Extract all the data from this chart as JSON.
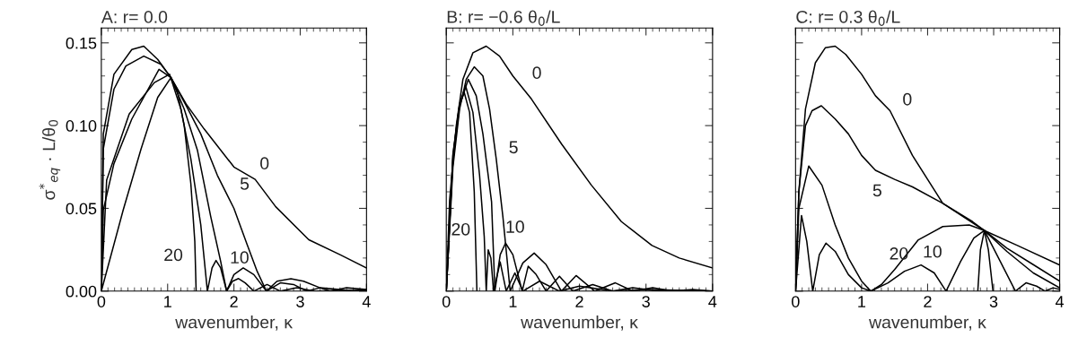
{
  "chart_data": [
    {
      "type": "line",
      "title": "A: r= 0.0",
      "xlabel": "wavenumber, κ",
      "ylabel": "σ$^{*}$$_{eq}$ · L/θ$_{0}$",
      "xlim": [
        0,
        4
      ],
      "ylim": [
        0,
        0.159
      ],
      "xticks": [
        0,
        1,
        2,
        3,
        4
      ],
      "yticks": [
        {
          "value": 0,
          "label": "0.00"
        },
        {
          "value": 0.05,
          "label": "0.05"
        },
        {
          "value": 0.1,
          "label": "0.10"
        },
        {
          "value": 0.15,
          "label": "0.15"
        }
      ],
      "grid": false,
      "series": [
        {
          "color": "#000000",
          "x": [
            0,
            0.03,
            0.19,
            0.46,
            0.64,
            0.85,
            1.05,
            1.28,
            1.55,
            2.0,
            2.32,
            2.63,
            3.13,
            3.6,
            4.0
          ],
          "values": [
            0,
            0.095,
            0.131,
            0.146,
            0.148,
            0.14,
            0.129,
            0.113,
            0.098,
            0.075,
            0.0675,
            0.051,
            0.031,
            0.022,
            0.014
          ]
        },
        {
          "color": "#000000",
          "x": [
            0,
            0.03,
            0.19,
            0.37,
            0.64,
            0.9,
            1.05,
            1.28,
            1.5,
            1.75,
            2.0,
            2.2,
            2.35,
            2.49,
            2.65,
            2.86,
            3.05,
            3.3,
            3.45,
            3.7,
            4.0
          ],
          "values": [
            0,
            0.086,
            0.122,
            0.136,
            0.142,
            0.137,
            0.129,
            0.112,
            0.095,
            0.07,
            0.05,
            0.028,
            0.012,
            0,
            0.006,
            0.0075,
            0.006,
            0.002,
            0,
            0.002,
            0.001
          ]
        },
        {
          "color": "#000000",
          "x": [
            0,
            0.03,
            0.19,
            0.46,
            0.87,
            1.05,
            1.25,
            1.45,
            1.65,
            1.8,
            1.89,
            2.0,
            2.14,
            2.3,
            2.49,
            2.7,
            2.9,
            3.1,
            3.3,
            3.6,
            3.8,
            4.0
          ],
          "values": [
            0,
            0.049,
            0.077,
            0.104,
            0.134,
            0.129,
            0.11,
            0.085,
            0.045,
            0.018,
            0,
            0.01,
            0.014,
            0.01,
            0,
            0.005,
            0.004,
            0,
            0.002,
            0.001,
            0,
            0.001
          ]
        },
        {
          "color": "#000000",
          "x": [
            0,
            0.08,
            0.42,
            0.8,
            1.03,
            1.2,
            1.35,
            1.5,
            1.6,
            1.67,
            1.73,
            1.8,
            1.89,
            1.98,
            2.07,
            2.17,
            2.3,
            2.5,
            2.7,
            2.95,
            3.2,
            4.0
          ],
          "values": [
            0,
            0.067,
            0.107,
            0.126,
            0.131,
            0.11,
            0.08,
            0.04,
            0,
            0.014,
            0.0185,
            0.014,
            0,
            0.006,
            0.0076,
            0.005,
            0,
            0.004,
            0,
            0.002,
            0,
            0.0005
          ]
        },
        {
          "color": "#000000",
          "x": [
            0,
            0.33,
            0.6,
            0.85,
            1.05,
            1.15,
            1.25,
            1.35,
            1.41,
            1.43
          ],
          "values": [
            0,
            0.049,
            0.086,
            0.117,
            0.129,
            0.12,
            0.1,
            0.065,
            0.03,
            0
          ]
        }
      ],
      "annotations": [
        {
          "text": "0",
          "x": 2.2,
          "y": 0.0703
        },
        {
          "text": "5",
          "x": 1.9,
          "y": 0.058
        },
        {
          "text": "10",
          "x": 1.75,
          "y": 0.027
        },
        {
          "text": "20",
          "x": 1.42,
          "y": 0.015
        }
      ]
    },
    {
      "type": "line",
      "title": "B: r= −0.6 θ$_{0}$/L",
      "xlabel": "wavenumber, κ",
      "xlim": [
        0,
        4
      ],
      "ylim": [
        0,
        0.159
      ],
      "xticks": [
        0,
        1,
        2,
        3,
        4
      ],
      "yticks": [
        {
          "value": 0,
          "label": null
        },
        {
          "value": 0.05,
          "label": null
        },
        {
          "value": 0.1,
          "label": null
        },
        {
          "value": 0.15,
          "label": null
        }
      ],
      "tick_labels": "x",
      "grid": false,
      "series": [
        {
          "color": "#000000",
          "x": [
            0,
            0.05,
            0.15,
            0.25,
            0.4,
            0.6,
            0.8,
            1.0,
            1.28,
            1.73,
            2.18,
            2.63,
            3.09,
            3.5,
            4.0
          ],
          "values": [
            0,
            0.055,
            0.1,
            0.128,
            0.144,
            0.148,
            0.142,
            0.13,
            0.116,
            0.089,
            0.064,
            0.042,
            0.0276,
            0.02,
            0.014
          ]
        },
        {
          "color": "#000000",
          "x": [
            0,
            0.1,
            0.2,
            0.3,
            0.42,
            0.55,
            0.65,
            0.75,
            0.85,
            0.96,
            1.15,
            1.32,
            1.5,
            1.73,
            1.95,
            2.23,
            2.54,
            2.8,
            3.1,
            3.4,
            3.7,
            4.0
          ],
          "values": [
            0,
            0.075,
            0.11,
            0.128,
            0.1355,
            0.13,
            0.11,
            0.08,
            0.045,
            0,
            0.017,
            0.023,
            0.016,
            0,
            0.0094,
            0,
            0.005,
            0,
            0.002,
            0,
            0.001,
            0
          ]
        },
        {
          "color": "#000000",
          "x": [
            0,
            0.1,
            0.2,
            0.33,
            0.45,
            0.55,
            0.68,
            0.73,
            0.81,
            0.89,
            1.0,
            1.14,
            1.23,
            1.35,
            1.5,
            1.7,
            1.9,
            2.2,
            2.5,
            2.8,
            3.2,
            4.0
          ],
          "values": [
            0,
            0.08,
            0.112,
            0.128,
            0.118,
            0.095,
            0.054,
            0,
            0.022,
            0.029,
            0.022,
            0,
            0.015,
            0.01,
            0,
            0.009,
            0,
            0.004,
            0,
            0.002,
            0,
            0
          ]
        },
        {
          "color": "#000000",
          "x": [
            0,
            0.1,
            0.2,
            0.29,
            0.4,
            0.5,
            0.57,
            0.6,
            0.63,
            0.67,
            0.71,
            0.81,
            0.9,
            1.03,
            1.15,
            1.4,
            1.7,
            2.0,
            2.5,
            3.0,
            4.0
          ],
          "values": [
            0,
            0.082,
            0.113,
            0.124,
            0.108,
            0.07,
            0.033,
            0,
            0.025,
            0.02,
            0,
            0.0176,
            0,
            0.011,
            0,
            0.006,
            0,
            0.003,
            0,
            0.001,
            0
          ]
        },
        {
          "color": "#000000",
          "x": [
            0,
            0.1,
            0.2,
            0.27,
            0.35,
            0.42,
            0.46
          ],
          "values": [
            0,
            0.083,
            0.113,
            0.12,
            0.108,
            0.06,
            0
          ]
        }
      ],
      "annotations": [
        {
          "text": "0",
          "x": 1.1,
          "y": 0.125
        },
        {
          "text": "5",
          "x": 0.75,
          "y": 0.08
        },
        {
          "text": "10",
          "x": 0.7,
          "y": 0.032
        },
        {
          "text": "20",
          "x": 0.55,
          "y": 0.044
        }
      ]
    },
    {
      "type": "line",
      "title": "C: r= 0.3 θ$_{0}$/L",
      "xlabel": "wavenumber, κ",
      "xlim": [
        0,
        4
      ],
      "ylim": [
        0,
        0.159
      ],
      "xticks": [
        0,
        1,
        2,
        3,
        4
      ],
      "yticks": [
        {
          "value": 0,
          "label": null
        },
        {
          "value": 0.05,
          "label": null
        },
        {
          "value": 0.1,
          "label": null
        },
        {
          "value": 0.15,
          "label": null
        }
      ],
      "tick_labels": "x",
      "grid": false,
      "series": [
        {
          "color": "#000000",
          "x": [
            0,
            0.05,
            0.15,
            0.3,
            0.45,
            0.6,
            0.76,
            1.0,
            1.21,
            1.43,
            1.77,
            2.23,
            2.68,
            2.86,
            3.36,
            4.0
          ],
          "values": [
            0,
            0.06,
            0.11,
            0.138,
            0.147,
            0.148,
            0.143,
            0.131,
            0.118,
            0.109,
            0.082,
            0.053,
            0.042,
            0.0366,
            0.0276,
            0.0158
          ]
        },
        {
          "color": "#000000",
          "x": [
            0,
            0.05,
            0.15,
            0.25,
            0.39,
            0.6,
            0.8,
            1.0,
            1.21,
            1.5,
            1.77,
            2.23,
            2.5,
            2.86,
            3.2,
            3.6,
            4.0
          ],
          "values": [
            0,
            0.06,
            0.1,
            0.109,
            0.112,
            0.104,
            0.095,
            0.082,
            0.073,
            0.0675,
            0.063,
            0.053,
            0.046,
            0.0366,
            0.026,
            0.016,
            0.006
          ]
        },
        {
          "color": "#000000",
          "x": [
            0,
            0.05,
            0.2,
            0.4,
            0.6,
            0.8,
            1.0,
            1.14,
            1.3,
            1.5,
            1.86,
            2.23,
            2.63,
            2.86,
            3.2,
            3.6,
            4.0
          ],
          "values": [
            0,
            0.05,
            0.0756,
            0.064,
            0.04,
            0.02,
            0.006,
            0,
            0.004,
            0.013,
            0.031,
            0.039,
            0.04,
            0.0366,
            0.024,
            0.011,
            0.002
          ]
        },
        {
          "color": "#000000",
          "x": [
            0,
            0.09,
            0.17,
            0.26,
            0.36,
            0.46,
            0.6,
            0.8,
            1.0,
            1.14,
            1.4,
            1.65,
            1.9,
            2.1,
            2.28,
            2.5,
            2.7,
            2.86,
            3.1,
            3.33,
            3.49,
            3.65,
            3.78,
            3.9,
            4.0
          ],
          "values": [
            0,
            0.0457,
            0.03,
            0,
            0.022,
            0.029,
            0.024,
            0.01,
            0.002,
            0,
            0.005,
            0.012,
            0.0158,
            0.011,
            0,
            0.018,
            0.032,
            0.0366,
            0.018,
            0,
            0.005,
            0.003,
            0,
            0.002,
            0.001
          ]
        },
        {
          "color": "#000000",
          "x": [
            2.76,
            2.8,
            2.86,
            2.92,
            2.99
          ],
          "values": [
            0,
            0.025,
            0.0366,
            0.025,
            0
          ]
        }
      ],
      "annotations": [
        {
          "text": "0",
          "x": 1.43,
          "y": 0.109
        },
        {
          "text": "5",
          "x": 1.5,
          "y": 0.0675
        },
        {
          "text": "10",
          "x": 1.7,
          "y": 0.023
        },
        {
          "text": "20",
          "x": 1.9,
          "y": 0.0158
        }
      ]
    }
  ]
}
